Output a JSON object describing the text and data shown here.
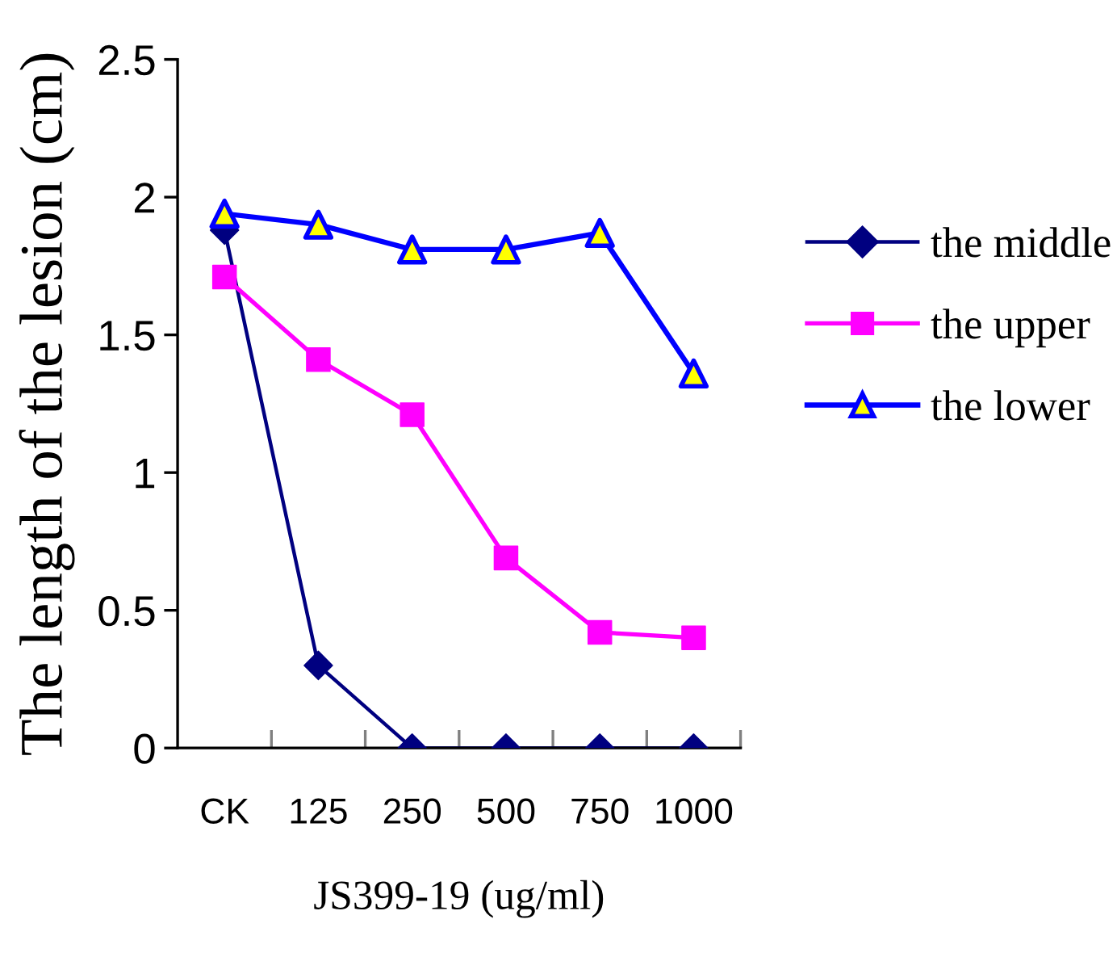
{
  "chart_data": {
    "type": "line",
    "xlabel": "JS399-19 (ug/ml)",
    "ylabel": "The length of the lesion (cm)",
    "categories": [
      "CK",
      "125",
      "250",
      "500",
      "750",
      "1000"
    ],
    "series": [
      {
        "name": "the middle",
        "color": "#000080",
        "marker": "diamond",
        "values": [
          1.88,
          0.3,
          0,
          0,
          0,
          0
        ]
      },
      {
        "name": "the upper",
        "color": "#ff00ff",
        "marker": "square",
        "values": [
          1.71,
          1.41,
          1.21,
          0.69,
          0.42,
          0.4
        ]
      },
      {
        "name": "the lower",
        "color": "#0000ff",
        "marker": "triangle",
        "colors": [
          "#ffff00",
          "#ffff00",
          "#ffff00",
          "#ffff00",
          "#ffff00",
          "#ffff00"
        ],
        "values": [
          1.94,
          1.9,
          1.81,
          1.81,
          1.87,
          1.36
        ]
      }
    ],
    "ylim": [
      0,
      2.5
    ],
    "yticks": [
      0,
      0.5,
      1,
      1.5,
      2,
      2.5
    ],
    "grid": false,
    "legend": "right",
    "line_style": "solid"
  }
}
